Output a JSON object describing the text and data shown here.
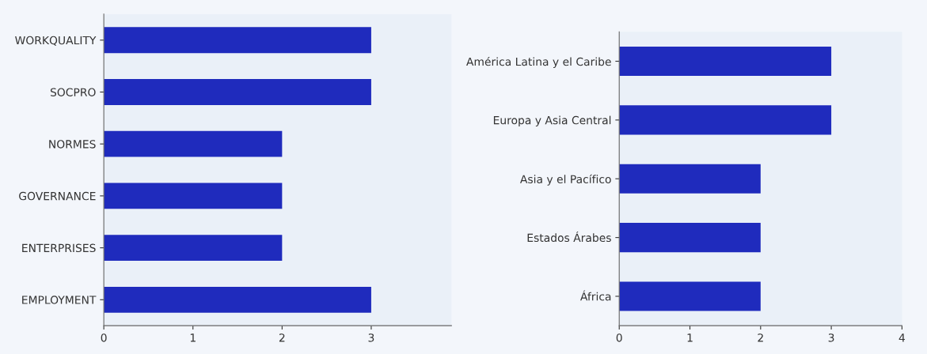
{
  "chart_data": [
    {
      "type": "bar",
      "orientation": "horizontal",
      "categories": [
        "WORKQUALITY",
        "SOCPRO",
        "NORMES",
        "GOVERNANCE",
        "ENTERPRISES",
        "EMPLOYMENT"
      ],
      "values": [
        3,
        3,
        2,
        2,
        2,
        3
      ],
      "color": "#1f2bbd",
      "xlim": [
        0,
        3.9
      ],
      "xticks": [
        0,
        1,
        2,
        3
      ],
      "grid": false,
      "legend": false
    },
    {
      "type": "bar",
      "orientation": "horizontal",
      "categories": [
        "América Latina y el Caribe",
        "Europa y Asia Central",
        "Asia y el Pacífico",
        "Estados Árabes",
        "África"
      ],
      "values": [
        3,
        3,
        2,
        2,
        2
      ],
      "color": "#1f2bbd",
      "xlim": [
        0,
        4
      ],
      "xticks": [
        0,
        1,
        2,
        3,
        4
      ],
      "grid": false,
      "legend": false
    }
  ]
}
